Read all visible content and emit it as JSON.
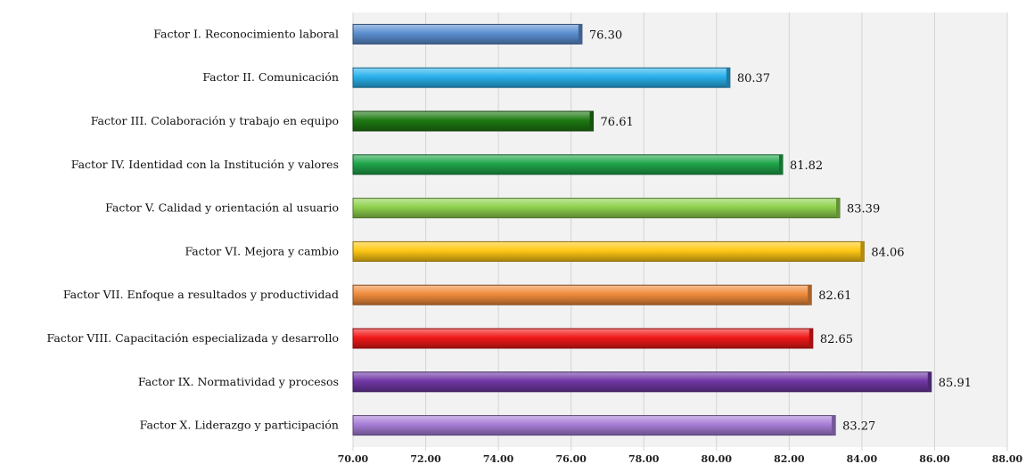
{
  "chart_data": {
    "type": "bar",
    "orientation": "horizontal",
    "categories": [
      "Factor I. Reconocimiento laboral",
      "Factor II. Comunicación",
      "Factor III. Colaboración y trabajo en equipo",
      "Factor IV. Identidad con la Institución y valores",
      "Factor V. Calidad y orientación al usuario",
      "Factor VI. Mejora y cambio",
      "Factor VII. Enfoque a resultados y productividad",
      "Factor VIII. Capacitación especializada y desarrollo",
      "Factor IX. Normatividad y procesos",
      "Factor X. Liderazgo y participación"
    ],
    "values": [
      76.3,
      80.37,
      76.61,
      81.82,
      83.39,
      84.06,
      82.61,
      82.65,
      85.91,
      83.27
    ],
    "value_labels": [
      "76.30",
      "80.37",
      "76.61",
      "81.82",
      "83.39",
      "84.06",
      "82.61",
      "82.65",
      "85.91",
      "83.27"
    ],
    "colors": [
      "#5b8fd1",
      "#29b1ec",
      "#1e7a12",
      "#1fa54a",
      "#8fd14d",
      "#ffc814",
      "#f08c3c",
      "#f01818",
      "#7038a6",
      "#a87ed8"
    ],
    "xlim": [
      70,
      88
    ],
    "ticks": [
      "70.00",
      "72.00",
      "74.00",
      "76.00",
      "78.00",
      "80.00",
      "82.00",
      "84.00",
      "86.00",
      "88.00"
    ],
    "grid": true,
    "title": "",
    "xlabel": "",
    "ylabel": ""
  }
}
